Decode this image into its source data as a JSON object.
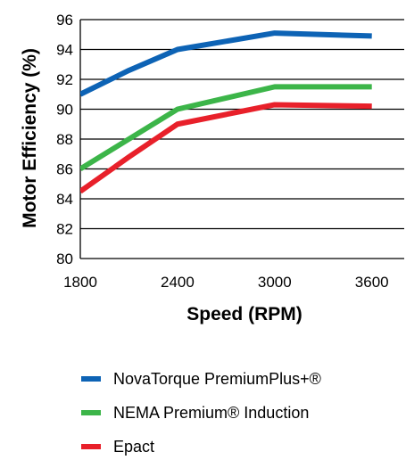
{
  "chart_data": {
    "type": "line",
    "title": "",
    "xlabel": "Speed (RPM)",
    "ylabel": "Motor Efficiency (%)",
    "x": [
      1800,
      2400,
      3000,
      3600
    ],
    "x_tick_labels": [
      "1800",
      "2400",
      "3000",
      "3600"
    ],
    "y_tick_labels": [
      "80",
      "82",
      "84",
      "86",
      "88",
      "90",
      "92",
      "94",
      "96"
    ],
    "ylim": [
      80,
      96
    ],
    "grid": "horizontal",
    "legend_position": "bottom",
    "series": [
      {
        "name": "NovaTorque PremiumPlus+®",
        "color": "#0d63b5",
        "points": [
          [
            1800,
            91.0
          ],
          [
            2100,
            92.6
          ],
          [
            2400,
            94.0
          ],
          [
            3000,
            95.1
          ],
          [
            3600,
            94.9
          ]
        ]
      },
      {
        "name": "NEMA Premium® Induction",
        "color": "#3cb549",
        "points": [
          [
            1800,
            86.0
          ],
          [
            2100,
            88.0
          ],
          [
            2400,
            90.0
          ],
          [
            3000,
            91.5
          ],
          [
            3600,
            91.5
          ]
        ]
      },
      {
        "name": "Epact",
        "color": "#e8202a",
        "points": [
          [
            1800,
            84.5
          ],
          [
            2100,
            86.8
          ],
          [
            2400,
            89.0
          ],
          [
            3000,
            90.3
          ],
          [
            3600,
            90.2
          ]
        ]
      }
    ]
  }
}
